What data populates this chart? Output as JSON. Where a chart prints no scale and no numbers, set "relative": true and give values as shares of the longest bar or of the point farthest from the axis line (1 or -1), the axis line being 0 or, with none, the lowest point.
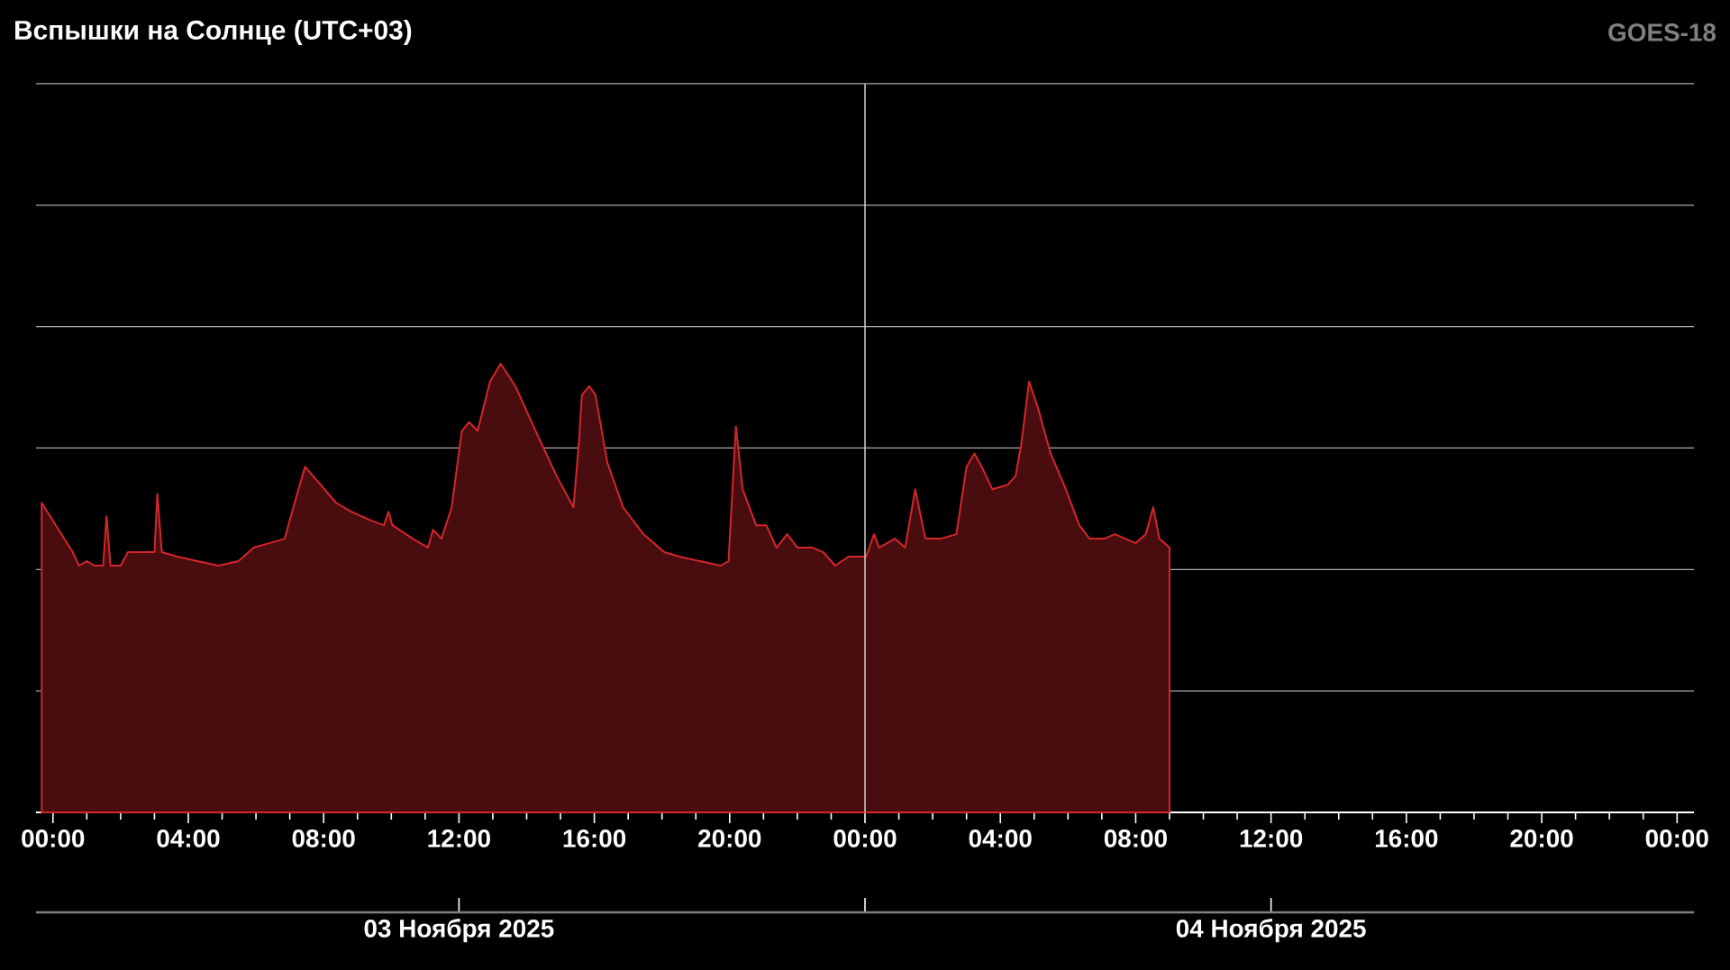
{
  "chart_data": {
    "type": "area",
    "title": "Вспышки на Солнце (UTC+03)",
    "subtitle": "GOES-18",
    "relative": true,
    "grid": "y",
    "xlim": [
      "2025-11-02T23:30",
      "2025-11-05T00:30"
    ],
    "xticks": [
      {
        "value": "2025-11-03T00:00",
        "label": "00:00"
      },
      {
        "value": "2025-11-03T04:00",
        "label": "04:00"
      },
      {
        "value": "2025-11-03T08:00",
        "label": "08:00"
      },
      {
        "value": "2025-11-03T12:00",
        "label": "12:00"
      },
      {
        "value": "2025-11-03T16:00",
        "label": "16:00"
      },
      {
        "value": "2025-11-03T20:00",
        "label": "20:00"
      },
      {
        "value": "2025-11-04T00:00",
        "label": "00:00"
      },
      {
        "value": "2025-11-04T04:00",
        "label": "04:00"
      },
      {
        "value": "2025-11-04T08:00",
        "label": "08:00"
      },
      {
        "value": "2025-11-04T12:00",
        "label": "12:00"
      },
      {
        "value": "2025-11-04T16:00",
        "label": "16:00"
      },
      {
        "value": "2025-11-04T20:00",
        "label": "20:00"
      },
      {
        "value": "2025-11-05T00:00",
        "label": "00:00"
      }
    ],
    "x2lim": [
      "2025-11-02T23:30",
      "2025-11-05T00:30"
    ],
    "x2ticks": [
      {
        "value": "2025-11-03T12:00",
        "label": "03 Ноября 2025"
      },
      {
        "value": "2025-11-04T00:00",
        "label": null
      },
      {
        "value": "2025-11-04T12:00",
        "label": "04 Ноября 2025"
      }
    ],
    "ref_lines": [
      {
        "axis": "x",
        "value": "2025-11-04T00:00",
        "color": "#c8c8c8"
      }
    ],
    "x": [
      "2025-11-02T23:40",
      "2025-11-03T00:35",
      "2025-11-03T00:46",
      "2025-11-03T01:00",
      "2025-11-03T01:14",
      "2025-11-03T01:29",
      "2025-11-03T01:35",
      "2025-11-03T01:42",
      "2025-11-03T02:00",
      "2025-11-03T02:13",
      "2025-11-03T02:27",
      "2025-11-03T02:46",
      "2025-11-03T03:00",
      "2025-11-03T03:05",
      "2025-11-03T03:13",
      "2025-11-03T03:40",
      "2025-11-03T04:16",
      "2025-11-03T04:53",
      "2025-11-03T05:29",
      "2025-11-03T05:56",
      "2025-11-03T06:23",
      "2025-11-03T06:51",
      "2025-11-03T07:04",
      "2025-11-03T07:27",
      "2025-11-03T07:55",
      "2025-11-03T08:22",
      "2025-11-03T08:49",
      "2025-11-03T09:25",
      "2025-11-03T09:47",
      "2025-11-03T09:55",
      "2025-11-03T10:02",
      "2025-11-03T10:38",
      "2025-11-03T11:05",
      "2025-11-03T11:14",
      "2025-11-03T11:29",
      "2025-11-03T11:47",
      "2025-11-03T12:05",
      "2025-11-03T12:18",
      "2025-11-03T12:33",
      "2025-11-03T12:55",
      "2025-11-03T13:14",
      "2025-11-03T13:40",
      "2025-11-03T14:16",
      "2025-11-03T14:53",
      "2025-11-03T15:23",
      "2025-11-03T15:33",
      "2025-11-03T15:38",
      "2025-11-03T15:51",
      "2025-11-03T16:02",
      "2025-11-03T16:23",
      "2025-11-03T16:51",
      "2025-11-03T17:27",
      "2025-11-03T18:04",
      "2025-11-03T18:31",
      "2025-11-03T19:07",
      "2025-11-03T19:44",
      "2025-11-03T19:58",
      "2025-11-03T20:11",
      "2025-11-03T20:23",
      "2025-11-03T20:47",
      "2025-11-03T21:05",
      "2025-11-03T21:23",
      "2025-11-03T21:42",
      "2025-11-03T22:00",
      "2025-11-03T22:27",
      "2025-11-03T22:46",
      "2025-11-03T23:07",
      "2025-11-03T23:31",
      "2025-11-04T00:02",
      "2025-11-04T00:16",
      "2025-11-04T00:25",
      "2025-11-04T00:53",
      "2025-11-04T01:11",
      "2025-11-04T01:29",
      "2025-11-04T01:47",
      "2025-11-04T02:14",
      "2025-11-04T02:42",
      "2025-11-04T03:00",
      "2025-11-04T03:14",
      "2025-11-04T03:27",
      "2025-11-04T03:46",
      "2025-11-04T04:13",
      "2025-11-04T04:27",
      "2025-11-04T04:37",
      "2025-11-04T04:51",
      "2025-11-04T05:07",
      "2025-11-04T05:29",
      "2025-11-04T05:53",
      "2025-11-04T06:20",
      "2025-11-04T06:38",
      "2025-11-04T07:05",
      "2025-11-04T07:23",
      "2025-11-04T07:42",
      "2025-11-04T08:00",
      "2025-11-04T08:18",
      "2025-11-04T08:31",
      "2025-11-04T08:42",
      "2025-11-04T09:00"
    ],
    "series": [
      {
        "color": "#d4262c",
        "values": [
          0.69,
          0.58,
          0.55,
          0.56,
          0.55,
          0.55,
          0.66,
          0.55,
          0.55,
          0.58,
          0.58,
          0.58,
          0.58,
          0.71,
          0.58,
          0.57,
          0.56,
          0.55,
          0.56,
          0.59,
          0.6,
          0.61,
          0.67,
          0.77,
          0.73,
          0.69,
          0.67,
          0.65,
          0.64,
          0.67,
          0.64,
          0.61,
          0.59,
          0.63,
          0.61,
          0.68,
          0.85,
          0.87,
          0.85,
          0.96,
          1,
          0.95,
          0.85,
          0.75,
          0.68,
          0.83,
          0.93,
          0.95,
          0.93,
          0.78,
          0.68,
          0.62,
          0.58,
          0.57,
          0.56,
          0.55,
          0.56,
          0.86,
          0.72,
          0.64,
          0.64,
          0.59,
          0.62,
          0.59,
          0.59,
          0.58,
          0.55,
          0.57,
          0.57,
          0.62,
          0.59,
          0.61,
          0.59,
          0.72,
          0.61,
          0.61,
          0.62,
          0.77,
          0.8,
          0.77,
          0.72,
          0.73,
          0.75,
          0.82,
          0.96,
          0.9,
          0.8,
          0.73,
          0.64,
          0.61,
          0.61,
          0.62,
          0.61,
          0.6,
          0.62,
          0.68,
          0.61,
          0.59
        ]
      }
    ]
  }
}
